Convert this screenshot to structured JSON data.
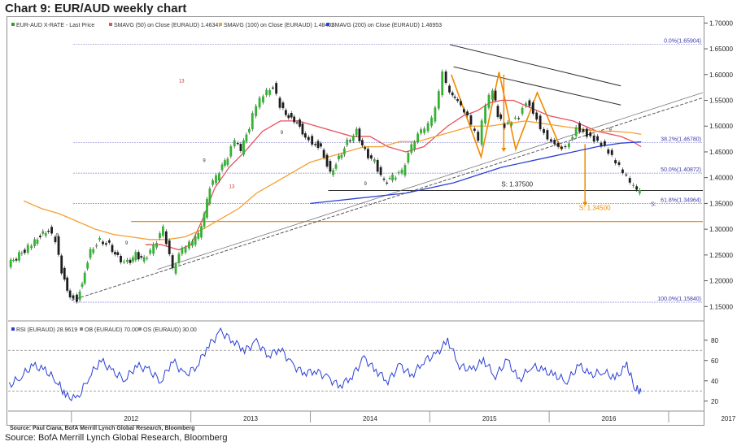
{
  "page": {
    "title": "Chart 9: EUR/AUD weekly chart",
    "source_inner": "Source: Paul Ciana, BofA Merrill Lynch Global Research, Bloomberg",
    "source": "Source: BofA Merrill Lynch Global Research, Bloomberg"
  },
  "chart_data": [
    {
      "type": "line",
      "title": "",
      "legend": [
        {
          "label": "EUR-AUD X-RATE - Last Price",
          "color": "#2ca02c"
        },
        {
          "label": "SMAVG (50) on Close (EURAUD) 1.46347",
          "color": "#e8505b"
        },
        {
          "label": "SMAVG (100) on Close (EURAUD) 1.48402",
          "color": "#f5a030"
        },
        {
          "label": "SMAVG (200) on Close (EURAUD) 1.46953",
          "color": "#2a3fd6"
        }
      ],
      "legend_position": "top-left",
      "ylim": [
        1.13,
        1.71
      ],
      "y_ticks": [
        "1.70000",
        "1.65000",
        "1.60000",
        "1.55000",
        "1.50000",
        "1.45000",
        "1.40000",
        "1.35000",
        "1.30000",
        "1.25000",
        "1.20000",
        "1.15000"
      ],
      "x_ticks": [
        "2012",
        "2013",
        "2014",
        "2015",
        "2016",
        "2017"
      ],
      "x_range": [
        2011.47,
        2017.3
      ],
      "series": [
        {
          "name": "EUR-AUD X-RATE - Last Price",
          "x": [
            2011.48,
            2011.55,
            2011.62,
            2011.68,
            2011.75,
            2011.82,
            2011.88,
            2011.93,
            2012.0,
            2012.06,
            2012.1,
            2012.17,
            2012.25,
            2012.33,
            2012.4,
            2012.48,
            2012.55,
            2012.62,
            2012.7,
            2012.78,
            2012.86,
            2012.94,
            2013.0,
            2013.05,
            2013.1,
            2013.17,
            2013.25,
            2013.32,
            2013.38,
            2013.43,
            2013.5,
            2013.56,
            2013.62,
            2013.7,
            2013.76,
            2013.83,
            2013.9,
            2013.97,
            2014.03,
            2014.1,
            2014.18,
            2014.25,
            2014.32,
            2014.4,
            2014.47,
            2014.55,
            2014.63,
            2014.7,
            2014.78,
            2014.86,
            2014.94,
            2015.0,
            2015.06,
            2015.12,
            2015.18,
            2015.22,
            2015.3,
            2015.36,
            2015.42,
            2015.48,
            2015.54,
            2015.58,
            2015.64,
            2015.7,
            2015.76,
            2015.82,
            2015.88,
            2015.94,
            2016.0,
            2016.06,
            2016.12,
            2016.18,
            2016.24,
            2016.3,
            2016.36,
            2016.42,
            2016.48,
            2016.54,
            2016.6,
            2016.66,
            2016.72,
            2016.77
          ],
          "y": [
            1.23,
            1.245,
            1.26,
            1.27,
            1.29,
            1.3,
            1.28,
            1.22,
            1.17,
            1.165,
            1.2,
            1.26,
            1.28,
            1.27,
            1.245,
            1.235,
            1.25,
            1.24,
            1.265,
            1.3,
            1.22,
            1.26,
            1.27,
            1.28,
            1.3,
            1.38,
            1.41,
            1.44,
            1.47,
            1.45,
            1.5,
            1.54,
            1.56,
            1.58,
            1.54,
            1.52,
            1.51,
            1.48,
            1.47,
            1.46,
            1.41,
            1.44,
            1.47,
            1.49,
            1.45,
            1.43,
            1.39,
            1.4,
            1.41,
            1.46,
            1.49,
            1.5,
            1.53,
            1.6,
            1.56,
            1.55,
            1.53,
            1.5,
            1.47,
            1.54,
            1.57,
            1.52,
            1.5,
            1.51,
            1.52,
            1.55,
            1.53,
            1.5,
            1.48,
            1.47,
            1.46,
            1.47,
            1.5,
            1.49,
            1.48,
            1.47,
            1.46,
            1.44,
            1.42,
            1.4,
            1.38,
            1.37
          ]
        },
        {
          "name": "SMAVG (50) on Close (EURAUD) 1.46347",
          "x": [
            2012.62,
            2012.75,
            2012.9,
            2013.0,
            2013.1,
            2013.2,
            2013.32,
            2013.45,
            2013.6,
            2013.75,
            2013.9,
            2014.05,
            2014.2,
            2014.35,
            2014.5,
            2014.65,
            2014.8,
            2014.95,
            2015.05,
            2015.15,
            2015.28,
            2015.4,
            2015.5,
            2015.6,
            2015.7,
            2015.8,
            2015.9,
            2016.0,
            2016.1,
            2016.2,
            2016.3,
            2016.4,
            2016.5,
            2016.6,
            2016.7,
            2016.77
          ],
          "y": [
            1.27,
            1.27,
            1.26,
            1.27,
            1.32,
            1.38,
            1.42,
            1.45,
            1.49,
            1.51,
            1.51,
            1.5,
            1.49,
            1.48,
            1.48,
            1.46,
            1.45,
            1.46,
            1.48,
            1.5,
            1.52,
            1.53,
            1.545,
            1.55,
            1.55,
            1.54,
            1.53,
            1.52,
            1.515,
            1.51,
            1.5,
            1.49,
            1.485,
            1.48,
            1.47,
            1.46
          ]
        },
        {
          "name": "SMAVG (100) on Close (EURAUD) 1.48402",
          "x": [
            2011.6,
            2011.75,
            2011.9,
            2012.05,
            2012.2,
            2012.35,
            2012.5,
            2012.65,
            2012.8,
            2012.95,
            2013.1,
            2013.25,
            2013.4,
            2013.55,
            2013.7,
            2013.85,
            2014.0,
            2014.15,
            2014.3,
            2014.45,
            2014.6,
            2014.75,
            2014.9,
            2015.05,
            2015.2,
            2015.35,
            2015.5,
            2015.65,
            2015.8,
            2015.95,
            2016.1,
            2016.25,
            2016.4,
            2016.55,
            2016.7,
            2016.77
          ],
          "y": [
            1.355,
            1.34,
            1.33,
            1.315,
            1.3,
            1.29,
            1.285,
            1.28,
            1.28,
            1.285,
            1.3,
            1.32,
            1.34,
            1.37,
            1.39,
            1.41,
            1.43,
            1.44,
            1.45,
            1.46,
            1.46,
            1.47,
            1.47,
            1.48,
            1.49,
            1.5,
            1.5,
            1.505,
            1.51,
            1.505,
            1.5,
            1.495,
            1.49,
            1.49,
            1.487,
            1.484
          ]
        },
        {
          "name": "SMAVG (200) on Close (EURAUD) 1.46953",
          "x": [
            2014.0,
            2014.2,
            2014.4,
            2014.6,
            2014.8,
            2015.0,
            2015.2,
            2015.4,
            2015.6,
            2015.8,
            2016.0,
            2016.2,
            2016.4,
            2016.6,
            2016.77
          ],
          "y": [
            1.35,
            1.355,
            1.36,
            1.365,
            1.37,
            1.38,
            1.39,
            1.405,
            1.42,
            1.43,
            1.44,
            1.45,
            1.46,
            1.467,
            1.4695
          ]
        }
      ],
      "annotations": {
        "fib_levels": [
          {
            "label": "0.0%(1.65904)",
            "value": 1.65904
          },
          {
            "label": "38.2%(1.46780)",
            "value": 1.4678
          },
          {
            "label": "50.0%(1.40872)",
            "value": 1.40872
          },
          {
            "label": "61.8%(1.34964)",
            "value": 1.34964
          },
          {
            "label": "100.0%(1.15840)",
            "value": 1.1584
          }
        ],
        "support_lines": [
          {
            "label": "S: 1.37500",
            "value": 1.375
          },
          {
            "label": "S: 1.34500",
            "value": 1.345
          }
        ],
        "fib_prefix": "S:",
        "horizontal_orange_level": 1.315,
        "markers": [
          "13",
          "9",
          "9",
          "9",
          "13",
          "9",
          "9",
          "9"
        ]
      }
    },
    {
      "type": "line",
      "title": "",
      "legend": [
        {
          "label": "RSI (EURAUD) 28.9619",
          "color": "#2a3fd6"
        },
        {
          "label": "OB (EURAUD) 70.00",
          "color": "#888888"
        },
        {
          "label": "OS (EURAUD) 30.00",
          "color": "#888888"
        }
      ],
      "ylim": [
        15,
        95
      ],
      "y_ticks": [
        "80",
        "60",
        "40",
        "20"
      ],
      "overbought": 70,
      "oversold": 30,
      "series": [
        {
          "name": "RSI (EURAUD) 28.9619",
          "x": [
            2011.48,
            2011.58,
            2011.68,
            2011.78,
            2011.88,
            2011.95,
            2012.05,
            2012.15,
            2012.25,
            2012.35,
            2012.45,
            2012.55,
            2012.65,
            2012.75,
            2012.85,
            2012.95,
            2013.05,
            2013.15,
            2013.25,
            2013.35,
            2013.45,
            2013.55,
            2013.65,
            2013.75,
            2013.85,
            2013.95,
            2014.05,
            2014.15,
            2014.25,
            2014.35,
            2014.45,
            2014.55,
            2014.65,
            2014.75,
            2014.85,
            2014.95,
            2015.05,
            2015.15,
            2015.25,
            2015.35,
            2015.45,
            2015.55,
            2015.65,
            2015.75,
            2015.85,
            2015.95,
            2016.05,
            2016.15,
            2016.25,
            2016.35,
            2016.45,
            2016.55,
            2016.65,
            2016.72,
            2016.77
          ],
          "y": [
            35,
            45,
            55,
            50,
            40,
            25,
            22,
            45,
            60,
            48,
            42,
            55,
            50,
            40,
            60,
            45,
            55,
            75,
            88,
            80,
            70,
            78,
            65,
            72,
            55,
            48,
            50,
            42,
            35,
            45,
            62,
            50,
            40,
            55,
            45,
            60,
            65,
            80,
            55,
            50,
            60,
            45,
            60,
            40,
            55,
            50,
            45,
            40,
            55,
            45,
            50,
            42,
            55,
            33,
            29
          ]
        }
      ]
    }
  ]
}
